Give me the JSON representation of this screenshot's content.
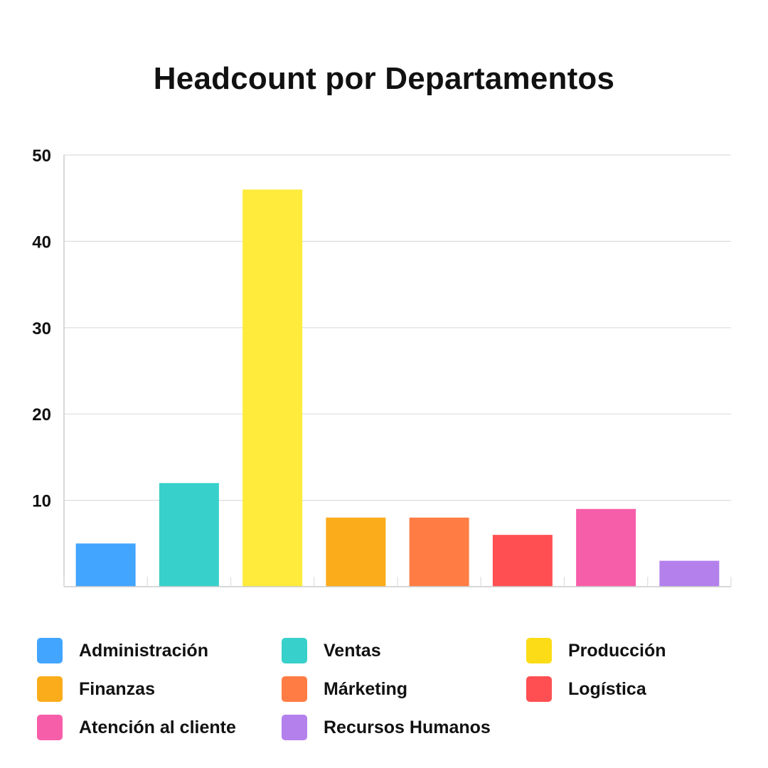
{
  "chart_data": {
    "type": "bar",
    "title": "Headcount por Departamentos",
    "xlabel": "",
    "ylabel": "",
    "categories": [
      "Administración",
      "Ventas",
      "Producción",
      "Finanzas",
      "Márketing",
      "Logística",
      "Atención al cliente",
      "Recursos Humanos"
    ],
    "values": [
      5,
      12,
      46,
      8,
      8,
      6,
      9,
      3
    ],
    "colors": [
      "#42A5FF",
      "#38D0CA",
      "#FFEB3B",
      "#FAAC1A",
      "#FF7D45",
      "#FF4F52",
      "#F75EA9",
      "#B380EC"
    ],
    "ylim": [
      0,
      50
    ],
    "yticks": [
      10,
      20,
      30,
      40,
      50
    ],
    "grid": true,
    "legend_position": "bottom",
    "legend": [
      {
        "label": "Administración",
        "color": "#42A5FF"
      },
      {
        "label": "Ventas",
        "color": "#38D0CA"
      },
      {
        "label": "Producción",
        "color": "#FCDC17"
      },
      {
        "label": "Finanzas",
        "color": "#FAAC1A"
      },
      {
        "label": "Márketing",
        "color": "#FF7D45"
      },
      {
        "label": "Logística",
        "color": "#FF4F52"
      },
      {
        "label": "Atención al cliente",
        "color": "#F75EA9"
      },
      {
        "label": "Recursos Humanos",
        "color": "#B380EC"
      }
    ]
  }
}
